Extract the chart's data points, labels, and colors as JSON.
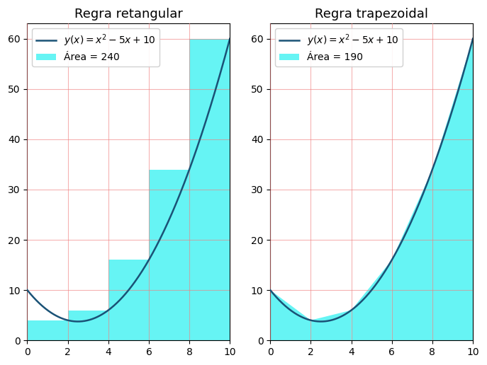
{
  "title_left": "Regra retangular",
  "title_right": "Regra trapezoidal",
  "formula_label": "$y(x) = x^2 - 5x + 10$",
  "area_label_left": "Área = 240",
  "area_label_right": "Área = 190",
  "x_start": 0,
  "x_end": 10,
  "rect_nodes": [
    0,
    2,
    4,
    6,
    8,
    10
  ],
  "bar_color": "#00EEEE",
  "bar_alpha": 0.6,
  "line_color": "#1a5276",
  "line_width": 1.8,
  "ylim": [
    0,
    63
  ],
  "yticks": [
    0,
    10,
    20,
    30,
    40,
    50,
    60
  ],
  "xticks": [
    0,
    2,
    4,
    6,
    8,
    10
  ],
  "grid_color": "#f08080",
  "grid_alpha": 0.6,
  "title_fontsize": 13,
  "legend_fontsize": 10,
  "fig_bg_color": "#ffffff",
  "axes_bg_color": "#ffffff"
}
